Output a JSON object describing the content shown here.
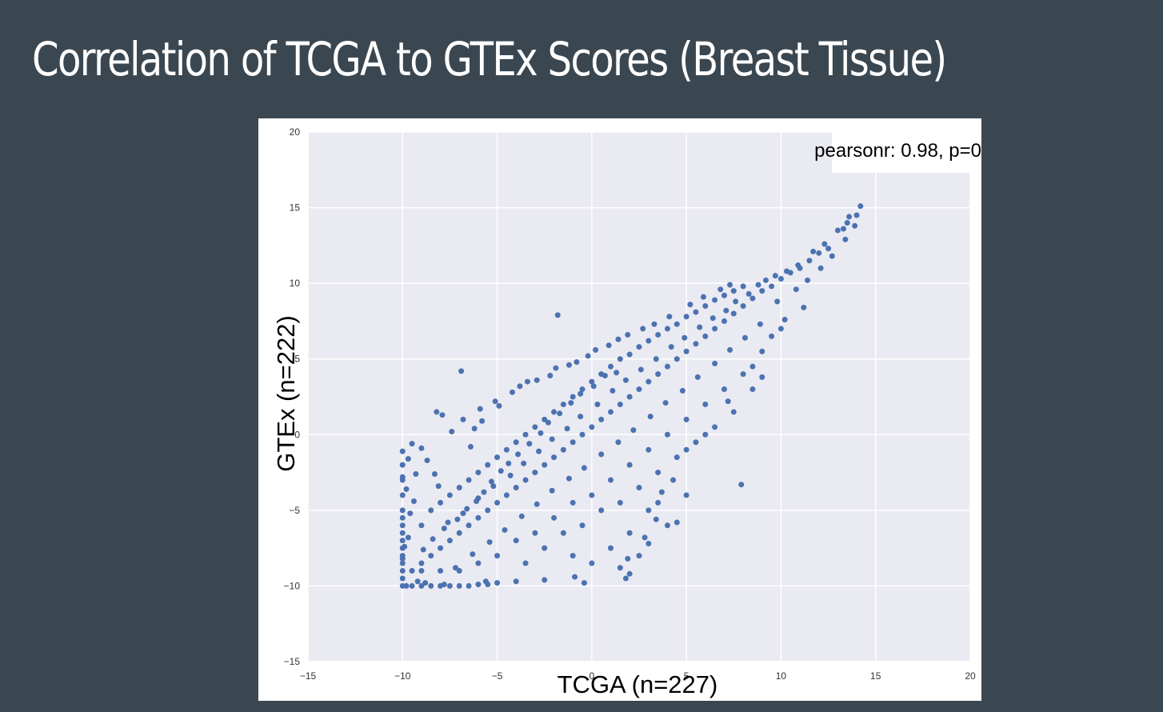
{
  "slide": {
    "title": "Correlation of TCGA to GTEx Scores (Breast Tissue)"
  },
  "colors": {
    "background": "#3b4750",
    "plot_bg": "#eaeaf2",
    "points": "#4c72b0",
    "grid": "#ffffff"
  },
  "chart_data": {
    "type": "scatter",
    "title": "",
    "xlabel": "TCGA (n=227)",
    "ylabel": "GTEx (n=222)",
    "xlim": [
      -15,
      20
    ],
    "ylim": [
      -15,
      20
    ],
    "xticks": [
      -15,
      -10,
      -5,
      0,
      5,
      10,
      15,
      20
    ],
    "yticks": [
      -15,
      -10,
      -5,
      0,
      5,
      10,
      15,
      20
    ],
    "xtick_labels": [
      "−15",
      "−10",
      "−5",
      "0",
      "5",
      "10",
      "15",
      "20"
    ],
    "ytick_labels": [
      "−15",
      "−10",
      "−5",
      "0",
      "5",
      "10",
      "15",
      "20"
    ],
    "grid": true,
    "annotation": "pearsonr: 0.98, p=0",
    "annotation_position": "top-right",
    "series": [
      {
        "color": "#4c72b0",
        "points": [
          [
            -10,
            -10
          ],
          [
            -10,
            -9.5
          ],
          [
            -10,
            -9
          ],
          [
            -10,
            -8.5
          ],
          [
            -10,
            -8
          ],
          [
            -10,
            -7.5
          ],
          [
            -10,
            -7
          ],
          [
            -10,
            -6.5
          ],
          [
            -10,
            -6
          ],
          [
            -10,
            -5.5
          ],
          [
            -10,
            -5
          ],
          [
            -10,
            -4
          ],
          [
            -10,
            -3
          ],
          [
            -10,
            -2
          ],
          [
            -9.8,
            -10
          ],
          [
            -9.5,
            -10
          ],
          [
            -9,
            -10
          ],
          [
            -8.5,
            -10
          ],
          [
            -8,
            -10
          ],
          [
            -7.5,
            -10
          ],
          [
            -7,
            -10
          ],
          [
            -6.5,
            -10
          ],
          [
            -6,
            -9.9
          ],
          [
            -5.5,
            -9.9
          ],
          [
            -5,
            -9.8
          ],
          [
            -9.5,
            -9
          ],
          [
            -9,
            -8.5
          ],
          [
            -8.5,
            -8
          ],
          [
            -8,
            -7.5
          ],
          [
            -7.5,
            -7
          ],
          [
            -7,
            -6.5
          ],
          [
            -6.5,
            -6
          ],
          [
            -6,
            -5.5
          ],
          [
            -5.5,
            -5
          ],
          [
            -5,
            -4.5
          ],
          [
            -4.5,
            -4
          ],
          [
            -4,
            -3.5
          ],
          [
            -3.5,
            -3
          ],
          [
            -3,
            -2.5
          ],
          [
            -2.5,
            -2
          ],
          [
            -2,
            -1.5
          ],
          [
            -1.5,
            -1
          ],
          [
            -1,
            -0.5
          ],
          [
            -0.5,
            0
          ],
          [
            0,
            0.5
          ],
          [
            0.5,
            1
          ],
          [
            1,
            1.5
          ],
          [
            1.5,
            2
          ],
          [
            2,
            2.5
          ],
          [
            2.5,
            3
          ],
          [
            3,
            3.5
          ],
          [
            3.5,
            4
          ],
          [
            4,
            4.5
          ],
          [
            4.5,
            5
          ],
          [
            5,
            5.5
          ],
          [
            5.5,
            6
          ],
          [
            6,
            6.5
          ],
          [
            6.5,
            7
          ],
          [
            7,
            7.5
          ],
          [
            7.5,
            8
          ],
          [
            8,
            8.5
          ],
          [
            8.5,
            9
          ],
          [
            9,
            9.5
          ],
          [
            9.5,
            9.8
          ],
          [
            10,
            10.3
          ],
          [
            10.5,
            10.7
          ],
          [
            11,
            11
          ],
          [
            11.5,
            11.5
          ],
          [
            12,
            12
          ],
          [
            12.5,
            12.3
          ],
          [
            13,
            13.5
          ],
          [
            13.5,
            14
          ],
          [
            14,
            14.5
          ],
          [
            14.2,
            15.1
          ],
          [
            -9,
            -6
          ],
          [
            -8.5,
            -5
          ],
          [
            -8,
            -4.5
          ],
          [
            -7.5,
            -4
          ],
          [
            -7,
            -3.5
          ],
          [
            -6.5,
            -3
          ],
          [
            -6,
            -2.5
          ],
          [
            -5.5,
            -2
          ],
          [
            -5,
            -1.5
          ],
          [
            -4.5,
            -1
          ],
          [
            -4,
            -0.5
          ],
          [
            -3.5,
            0
          ],
          [
            -3,
            0.5
          ],
          [
            -2.5,
            1
          ],
          [
            -2,
            1.5
          ],
          [
            -1.5,
            2
          ],
          [
            -1,
            2.5
          ],
          [
            -0.5,
            3
          ],
          [
            0,
            3.5
          ],
          [
            0.5,
            4
          ],
          [
            1,
            4.5
          ],
          [
            1.5,
            5
          ],
          [
            2,
            5.3
          ],
          [
            2.5,
            5.8
          ],
          [
            3,
            6.2
          ],
          [
            3.5,
            6.6
          ],
          [
            4,
            7
          ],
          [
            4.5,
            7.3
          ],
          [
            5,
            7.8
          ],
          [
            5.5,
            8.1
          ],
          [
            6,
            8.5
          ],
          [
            6.5,
            8.9
          ],
          [
            7,
            9.2
          ],
          [
            7.5,
            9.5
          ],
          [
            8,
            9.8
          ],
          [
            -9,
            -9
          ],
          [
            -8,
            -9
          ],
          [
            -7,
            -9
          ],
          [
            -6,
            -8.5
          ],
          [
            -5,
            -8
          ],
          [
            -4,
            -7
          ],
          [
            -3,
            -6.5
          ],
          [
            -2,
            -5.5
          ],
          [
            -1,
            -4.5
          ],
          [
            0,
            -4
          ],
          [
            1,
            -3
          ],
          [
            2,
            -2
          ],
          [
            3,
            -1
          ],
          [
            4,
            0
          ],
          [
            5,
            1
          ],
          [
            6,
            2
          ],
          [
            7,
            3
          ],
          [
            8,
            4
          ],
          [
            9,
            5.5
          ],
          [
            10,
            7
          ],
          [
            -3.5,
            -8.5
          ],
          [
            -2.5,
            -7.5
          ],
          [
            -1.5,
            -6.5
          ],
          [
            -0.5,
            -6
          ],
          [
            0.5,
            -5
          ],
          [
            1.5,
            -4.5
          ],
          [
            2.5,
            -3.5
          ],
          [
            3.5,
            -2.5
          ],
          [
            4.5,
            -1.5
          ],
          [
            5.5,
            -0.5
          ],
          [
            6.5,
            0.5
          ],
          [
            7.5,
            1.5
          ],
          [
            8.5,
            3
          ],
          [
            -1,
            -8
          ],
          [
            0,
            -8.5
          ],
          [
            1,
            -7.5
          ],
          [
            2,
            -6.5
          ],
          [
            3,
            -5
          ],
          [
            3.5,
            -4.5
          ],
          [
            4,
            -6
          ],
          [
            3,
            -7.2
          ],
          [
            2.5,
            -8
          ],
          [
            1.5,
            -8.8
          ],
          [
            4.5,
            -5.8
          ],
          [
            5,
            -4
          ],
          [
            -0.4,
            -9.8
          ],
          [
            1.8,
            -9.5
          ],
          [
            2,
            -9.2
          ],
          [
            -10,
            -8.2
          ],
          [
            -9.9,
            -7.4
          ],
          [
            -9.7,
            -6.8
          ],
          [
            -9.6,
            -5.2
          ],
          [
            -9.4,
            -4.4
          ],
          [
            -9.8,
            -3.6
          ],
          [
            -10,
            -2.8
          ],
          [
            -9.3,
            -2.6
          ],
          [
            -9.7,
            -1.6
          ],
          [
            -10,
            -1.1
          ],
          [
            -9.5,
            -0.6
          ],
          [
            -9,
            -0.9
          ],
          [
            -8.7,
            -1.7
          ],
          [
            -8.3,
            -2.6
          ],
          [
            -8.1,
            -3.4
          ],
          [
            -8.2,
            1.5
          ],
          [
            -7.9,
            1.3
          ],
          [
            -6.8,
            1
          ],
          [
            -6.9,
            4.2
          ],
          [
            -7.4,
            0.2
          ],
          [
            -6.2,
            0.4
          ],
          [
            -6.4,
            -0.8
          ],
          [
            -5.8,
            0.9
          ],
          [
            -5.9,
            1.7
          ],
          [
            -5.1,
            2.2
          ],
          [
            -4.9,
            1.9
          ],
          [
            -4.2,
            2.8
          ],
          [
            -3.8,
            3.2
          ],
          [
            -3.4,
            3.5
          ],
          [
            -2.9,
            3.6
          ],
          [
            -2.2,
            3.9
          ],
          [
            -1.9,
            4.4
          ],
          [
            -1.2,
            4.6
          ],
          [
            -0.8,
            4.8
          ],
          [
            -0.2,
            5.2
          ],
          [
            0.2,
            5.6
          ],
          [
            0.9,
            5.9
          ],
          [
            1.4,
            6.3
          ],
          [
            1.9,
            6.6
          ],
          [
            2.7,
            7
          ],
          [
            3.3,
            7.3
          ],
          [
            4.1,
            7.8
          ],
          [
            5.2,
            8.6
          ],
          [
            5.9,
            9.1
          ],
          [
            6.8,
            9.6
          ],
          [
            7.3,
            9.9
          ],
          [
            -1.8,
            7.9
          ],
          [
            7.9,
            -3.3
          ],
          [
            11.2,
            8.4
          ],
          [
            8.5,
            4.5
          ],
          [
            9,
            3.8
          ],
          [
            7.2,
            2.2
          ],
          [
            6,
            0
          ],
          [
            5,
            -1
          ],
          [
            4.3,
            -3
          ],
          [
            3.7,
            -3.8
          ],
          [
            3.4,
            -5.6
          ],
          [
            2.8,
            -6.8
          ],
          [
            1.9,
            -8.2
          ],
          [
            -0.9,
            -9.4
          ],
          [
            -2.5,
            -9.6
          ],
          [
            -4,
            -9.7
          ],
          [
            -5.6,
            -9.7
          ],
          [
            -7.8,
            -9.9
          ],
          [
            -8.8,
            -9.8
          ],
          [
            -9.2,
            -9.7
          ],
          [
            9.5,
            6.5
          ],
          [
            10.2,
            7.6
          ],
          [
            9.8,
            8.8
          ],
          [
            10.8,
            9.6
          ],
          [
            11.4,
            10.2
          ],
          [
            12.1,
            11
          ],
          [
            12.7,
            11.8
          ],
          [
            13.4,
            12.9
          ],
          [
            13.9,
            13.8
          ],
          [
            13.6,
            14.4
          ],
          [
            13.3,
            13.6
          ],
          [
            12.3,
            12.6
          ],
          [
            11.7,
            12.1
          ],
          [
            10.9,
            11.2
          ],
          [
            10.3,
            10.8
          ],
          [
            9.7,
            10.5
          ],
          [
            9.2,
            10.2
          ],
          [
            8.8,
            9.9
          ],
          [
            8.3,
            9.3
          ],
          [
            7.6,
            8.8
          ],
          [
            -7.6,
            -5.8
          ],
          [
            -6.8,
            -5.2
          ],
          [
            -6,
            -4.2
          ],
          [
            -5.2,
            -3.4
          ],
          [
            -4.3,
            -2.7
          ],
          [
            -3.6,
            -1.9
          ],
          [
            -2.8,
            -1.1
          ],
          [
            -2.1,
            -0.3
          ],
          [
            -1.3,
            0.4
          ],
          [
            -0.6,
            1.2
          ],
          [
            0.3,
            2
          ],
          [
            1.1,
            2.9
          ],
          [
            1.8,
            3.6
          ],
          [
            2.6,
            4.3
          ],
          [
            3.4,
            5
          ],
          [
            4.2,
            5.8
          ],
          [
            4.9,
            6.4
          ],
          [
            5.7,
            7.1
          ],
          [
            6.4,
            7.7
          ],
          [
            7.1,
            8.2
          ],
          [
            -7.2,
            -8.8
          ],
          [
            -6.3,
            -7.9
          ],
          [
            -5.4,
            -7.1
          ],
          [
            -4.6,
            -6.3
          ],
          [
            -3.7,
            -5.4
          ],
          [
            -2.9,
            -4.6
          ],
          [
            -2.1,
            -3.7
          ],
          [
            -1.2,
            -2.9
          ],
          [
            -0.4,
            -2.2
          ],
          [
            0.5,
            -1.3
          ],
          [
            1.4,
            -0.5
          ],
          [
            2.2,
            0.3
          ],
          [
            3.1,
            1.2
          ],
          [
            3.9,
            2.1
          ],
          [
            4.8,
            2.9
          ],
          [
            5.6,
            3.8
          ],
          [
            6.5,
            4.7
          ],
          [
            7.3,
            5.6
          ],
          [
            8.1,
            6.4
          ],
          [
            8.9,
            7.3
          ],
          [
            -8.9,
            -7.6
          ],
          [
            -8.4,
            -6.9
          ],
          [
            -7.8,
            -6.2
          ],
          [
            -7.1,
            -5.6
          ],
          [
            -6.6,
            -4.9
          ],
          [
            -6.1,
            -4.4
          ],
          [
            -5.7,
            -3.8
          ],
          [
            -5.3,
            -3.1
          ],
          [
            -4.8,
            -2.4
          ],
          [
            -4.4,
            -1.9
          ],
          [
            -3.9,
            -1.3
          ],
          [
            -3.3,
            -0.6
          ],
          [
            -2.7,
            0.1
          ],
          [
            -2.3,
            0.8
          ],
          [
            -1.7,
            1.4
          ],
          [
            -1.1,
            2.1
          ],
          [
            -0.6,
            2.7
          ],
          [
            0.1,
            3.2
          ],
          [
            0.7,
            3.9
          ],
          [
            1.3,
            4.1
          ]
        ]
      }
    ]
  }
}
